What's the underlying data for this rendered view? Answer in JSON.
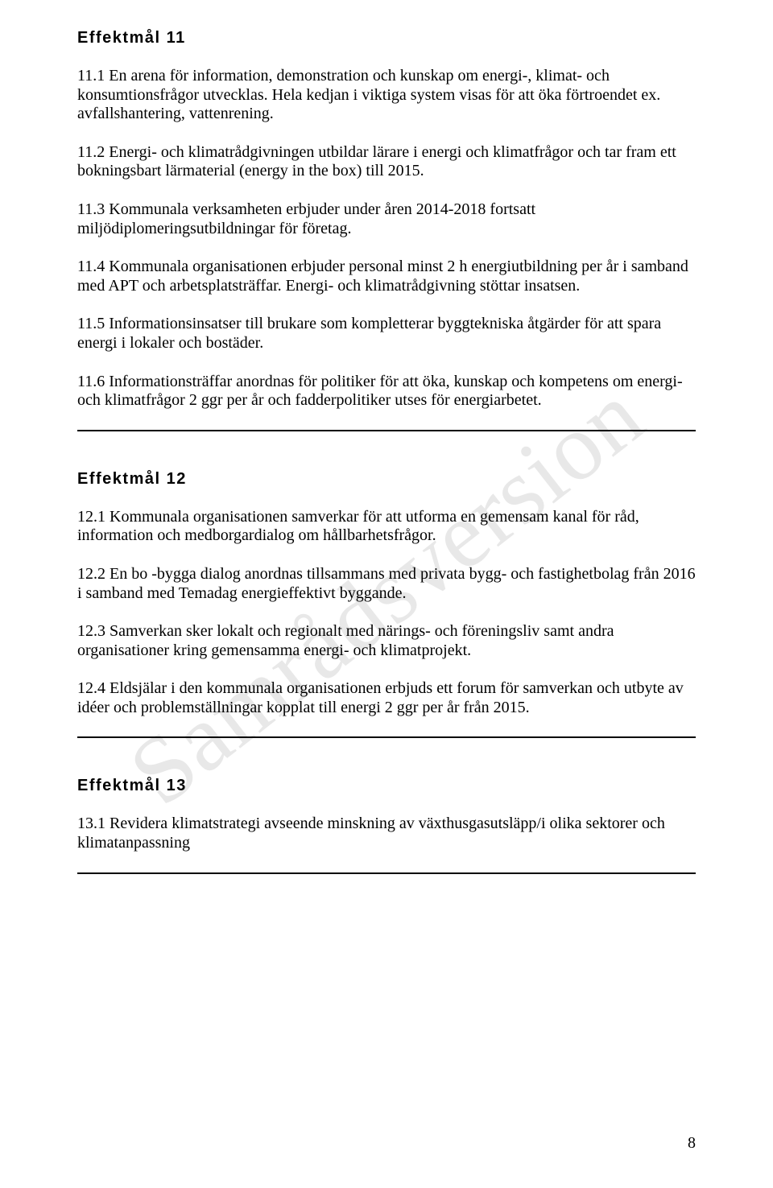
{
  "watermark_text": "Samrådsversion",
  "page_number": "8",
  "text_color": "#000000",
  "background_color": "#ffffff",
  "watermark_color": "rgba(0,0,0,0.09)",
  "heading_font": "Arial",
  "body_font": "Times New Roman",
  "heading_fontsize": 20,
  "body_fontsize": 20,
  "sections": {
    "s11": {
      "heading": "Effektmål 11",
      "items": {
        "p1": "11.1 En arena för information, demonstration och kunskap om energi-, klimat- och konsumtionsfrågor utvecklas. Hela kedjan i viktiga system visas för att öka förtroendet ex. avfallshantering, vattenrening.",
        "p2": "11.2 Energi- och klimatrådgivningen utbildar lärare i energi och klimatfrågor och tar fram ett bokningsbart lärmaterial (energy in the box) till 2015.",
        "p3": "11.3 Kommunala verksamheten erbjuder under åren 2014-2018 fortsatt miljödiplomeringsutbildningar för företag.",
        "p4": "11.4 Kommunala organisationen erbjuder personal minst 2 h energiutbildning per år i samband med APT och arbetsplatsträffar. Energi- och klimatrådgivning stöttar insatsen.",
        "p5": "11.5 Informationsinsatser till brukare som kompletterar byggtekniska åtgärder för att spara energi i lokaler och bostäder.",
        "p6": "11.6 Informationsträffar anordnas för politiker för att öka, kunskap och kompetens om energi- och klimatfrågor 2 ggr per år och fadderpolitiker utses för energiarbetet."
      }
    },
    "s12": {
      "heading": "Effektmål 12",
      "items": {
        "p1": "12.1 Kommunala organisationen samverkar för att utforma en gemensam kanal för råd, information och medborgardialog om hållbarhetsfrågor.",
        "p2": "12.2 En bo -bygga dialog anordnas tillsammans med privata bygg- och fastighetbolag från 2016 i samband med Temadag energieffektivt byggande.",
        "p3": "12.3 Samverkan sker lokalt och regionalt med närings- och föreningsliv samt andra organisationer kring gemensamma energi- och klimatprojekt.",
        "p4": "12.4 Eldsjälar i den kommunala organisationen erbjuds ett forum för samverkan och utbyte av idéer och problemställningar kopplat till energi 2 ggr per år från 2015."
      }
    },
    "s13": {
      "heading": "Effektmål 13",
      "items": {
        "p1": "13.1 Revidera klimatstrategi avseende minskning av växthusgasutsläpp/i olika sektorer och klimatanpassning"
      }
    }
  }
}
